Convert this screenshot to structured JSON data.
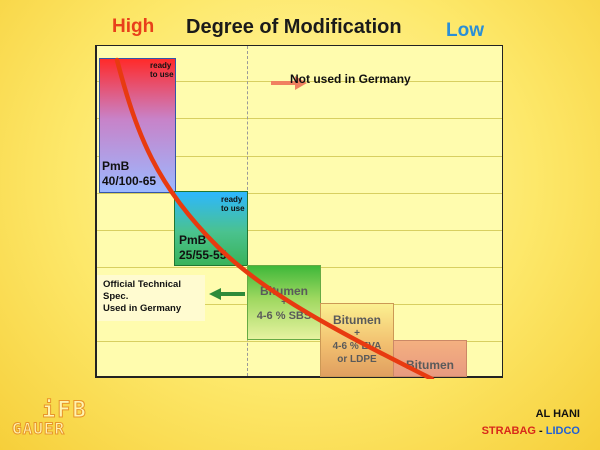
{
  "header": {
    "high": "High",
    "title": "Degree of Modification",
    "low": "Low"
  },
  "legend": {
    "not_used": "Not used in Germany",
    "official": [
      "Official Technical",
      "Spec.",
      "Used in Germany"
    ]
  },
  "boxes": [
    {
      "ready": [
        "ready",
        "to use"
      ],
      "lines": [
        "PmB",
        "40/100-65"
      ]
    },
    {
      "ready": [
        "ready",
        "to use"
      ],
      "lines": [
        "PmB",
        "25/55-55"
      ]
    },
    {
      "lines": [
        "Bitumen",
        "+",
        "4-6 % SBS"
      ]
    },
    {
      "lines": [
        "Bitumen",
        "+",
        "4-6 % EVA",
        "or LDPE"
      ]
    },
    {
      "lines": [
        "Bitumen"
      ]
    }
  ],
  "footer": {
    "author": "AL HANI",
    "org1": "STRABAG",
    "sep": " - ",
    "org2": "LIDCO",
    "logo_top": "iFB",
    "logo_bottom": "GAUER"
  },
  "colors": {
    "high": "#e8401a",
    "low": "#2a8fd6",
    "curve": "#e83a10",
    "arrow_orange": "#f08060",
    "arrow_green": "#2e8b3a",
    "strabag": "#d8281a",
    "lidco": "#1f5fd6"
  }
}
